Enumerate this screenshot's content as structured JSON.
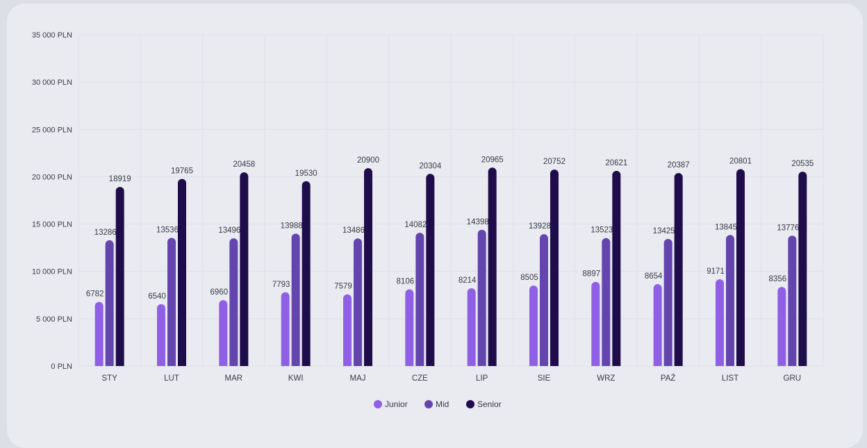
{
  "chart_data": {
    "type": "bar",
    "title": "",
    "xlabel": "",
    "ylabel": "",
    "ylim": [
      0,
      35000
    ],
    "yticks": [
      0,
      5000,
      10000,
      15000,
      20000,
      25000,
      30000,
      35000
    ],
    "ytick_labels": [
      "0 PLN",
      "5 000 PLN",
      "10 000 PLN",
      "15 000 PLN",
      "20 000 PLN",
      "25 000 PLN",
      "30 000 PLN",
      "35 000 PLN"
    ],
    "categories": [
      "STY",
      "LUT",
      "MAR",
      "KWI",
      "MAJ",
      "CZE",
      "LIP",
      "SIE",
      "WRZ",
      "PAŹ",
      "LIST",
      "GRU"
    ],
    "grid": true,
    "legend_position": "bottom-center",
    "series": [
      {
        "name": "Junior",
        "color": "#8f60e6",
        "values": [
          6782,
          6540,
          6960,
          7793,
          7579,
          8106,
          8214,
          8505,
          8897,
          8654,
          9171,
          8356
        ]
      },
      {
        "name": "Mid",
        "color": "#6445ae",
        "values": [
          13286,
          13536,
          13496,
          13988,
          13486,
          14082,
          14398,
          13928,
          13523,
          13425,
          13845,
          13776
        ]
      },
      {
        "name": "Senior",
        "color": "#1f0c4b",
        "values": [
          18919,
          19765,
          20458,
          19530,
          20900,
          20304,
          20965,
          20752,
          20621,
          20387,
          20801,
          20535
        ]
      }
    ]
  }
}
